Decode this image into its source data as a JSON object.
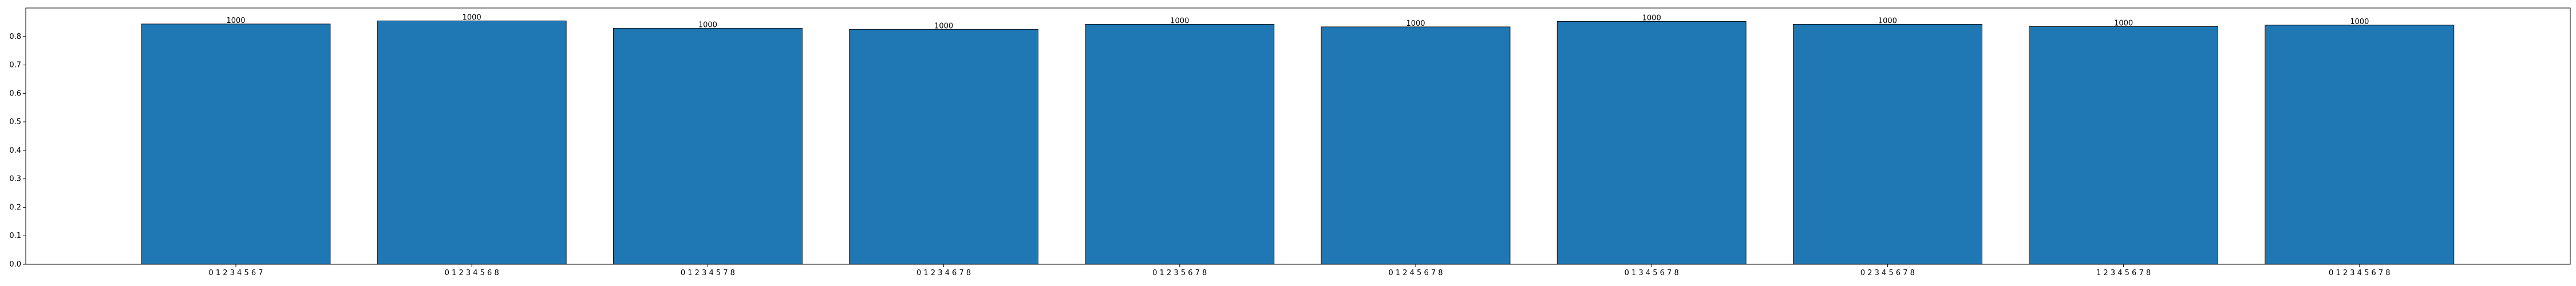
{
  "chart_data": {
    "type": "bar",
    "title": "",
    "xlabel": "",
    "ylabel": "",
    "categories": [
      "0 1 2 3 4 5 6 7",
      "0 1 2 3 4 5 6 8",
      "0 1 2 3 4 5 7 8",
      "0 1 2 3 4 6 7 8",
      "0 1 2 3 5 6 7 8",
      "0 1 2 4 5 6 7 8",
      "0 1 3 4 5 6 7 8",
      "0 2 3 4 5 6 7 8",
      "1 2 3 4 5 6 7 8",
      "0 1 2 3 4 5 6 7 8"
    ],
    "values": [
      0.844,
      0.855,
      0.829,
      0.825,
      0.843,
      0.834,
      0.853,
      0.843,
      0.835,
      0.84
    ],
    "data_labels": [
      "1000",
      "1000",
      "1000",
      "1000",
      "1000",
      "1000",
      "1000",
      "1000",
      "1000",
      "1000"
    ],
    "ylim": [
      0,
      0.9
    ],
    "yticks": [
      0.0,
      0.1,
      0.2,
      0.3,
      0.4,
      0.5,
      0.6,
      0.7,
      0.8
    ],
    "ytick_labels": [
      "0.0",
      "0.1",
      "0.2",
      "0.3",
      "0.4",
      "0.5",
      "0.6",
      "0.7",
      "0.8"
    ],
    "grid": false,
    "legend": "none",
    "bar_color": "#1f77b4",
    "bar_edge_color": "#000000",
    "axis_color": "#000000"
  }
}
